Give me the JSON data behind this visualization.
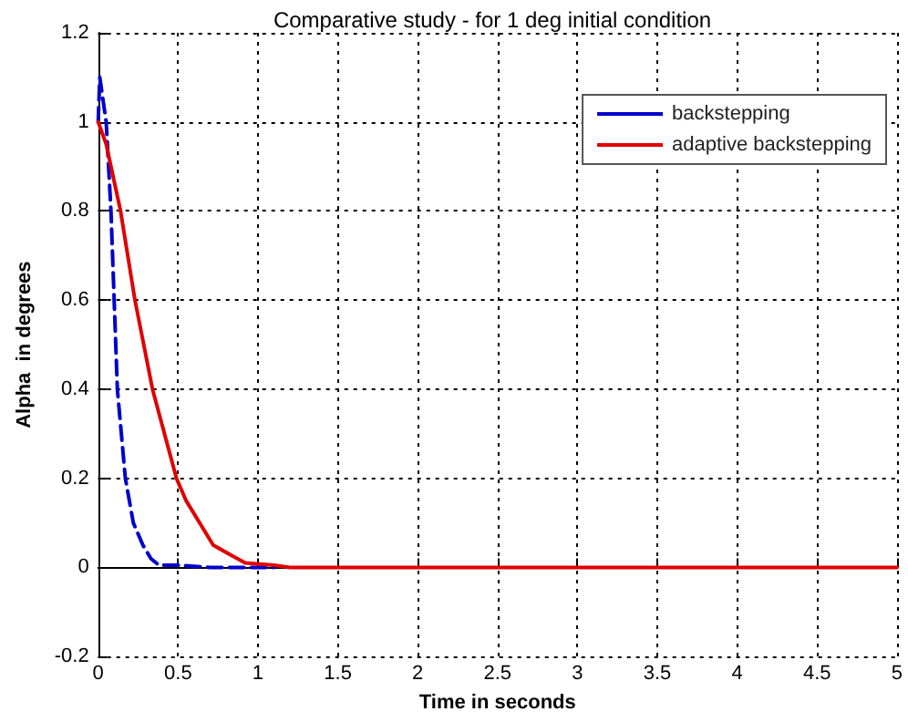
{
  "chart_data": {
    "type": "line",
    "title": "Comparative study - for 1 deg initial condition",
    "xlabel": "Time in seconds",
    "ylabel": "Alpha  in degrees",
    "series": [
      {
        "name": "backstepping",
        "color": "#0000cc",
        "line_style": "dashed",
        "x": [
          0,
          0.01,
          0.05,
          0.08,
          0.12,
          0.17,
          0.22,
          0.28,
          0.33,
          0.38,
          0.5,
          0.7,
          1.1
        ],
        "values": [
          1.0,
          1.1,
          1.0,
          0.8,
          0.4,
          0.2,
          0.1,
          0.05,
          0.02,
          0.005,
          0.005,
          0,
          0
        ]
      },
      {
        "name": "adaptive backstepping",
        "color": "#e00000",
        "line_style": "solid",
        "x": [
          0,
          0.05,
          0.14,
          0.23,
          0.34,
          0.49,
          0.55,
          0.72,
          0.92,
          1.1,
          1.2,
          5
        ],
        "values": [
          1.0,
          0.95,
          0.8,
          0.6,
          0.4,
          0.2,
          0.15,
          0.05,
          0.01,
          0.005,
          0,
          0
        ]
      }
    ],
    "xlim": [
      0,
      5
    ],
    "xticks": [
      0,
      0.5,
      1,
      1.5,
      2,
      2.5,
      3,
      3.5,
      4,
      4.5,
      5
    ],
    "ylim": [
      -0.2,
      1.2
    ],
    "yticks": [
      -0.2,
      0,
      0.2,
      0.4,
      0.6,
      0.8,
      1,
      1.2
    ],
    "grid": true,
    "legend": "top right",
    "marker": "none"
  }
}
